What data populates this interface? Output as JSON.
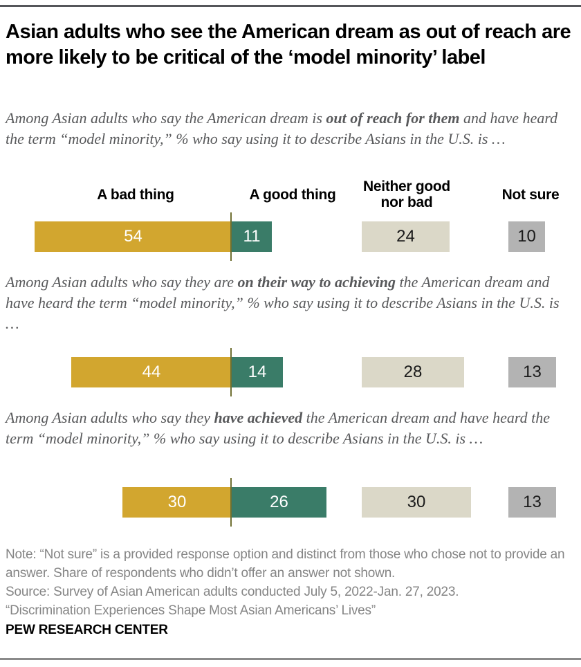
{
  "header": {
    "title": "Asian adults who see the American dream as out of reach are more likely to be critical of the ‘model minority’ label"
  },
  "columns": [
    {
      "id": "bad",
      "label": "A bad thing"
    },
    {
      "id": "good",
      "label": "A good thing"
    },
    {
      "id": "neither",
      "label": "Neither good nor bad"
    },
    {
      "id": "not_sure",
      "label": "Not sure"
    }
  ],
  "sections": [
    {
      "intro": {
        "pre": "Among Asian adults who say the American dream is ",
        "bold": "out of reach for them",
        "post": " and have heard the term “model minority,” % who say using it to describe Asians in the U.S. is …"
      }
    },
    {
      "intro": {
        "pre": "Among Asian adults who say they are ",
        "bold": "on their way to achieving",
        "post": " the American dream and have heard the term “model minority,” % who say using it to describe Asians in the U.S. is …"
      }
    },
    {
      "intro": {
        "pre": "Among Asian adults who say they ",
        "bold": "have achieved",
        "post": " the American dream and have heard the term “model minority,” % who say using it to describe Asians in the U.S. is …"
      }
    }
  ],
  "chart_data": {
    "type": "bar",
    "title": "Asian adults who see the American dream as out of reach are more likely to be critical of the ‘model minority’ label",
    "unit": "%",
    "categories": [
      "A bad thing",
      "A good thing",
      "Neither good nor bad",
      "Not sure"
    ],
    "series": [
      {
        "name": "American dream is out of reach for them",
        "values": [
          54,
          11,
          24,
          10
        ]
      },
      {
        "name": "On their way to achieving the American dream",
        "values": [
          44,
          14,
          28,
          13
        ]
      },
      {
        "name": "Have achieved the American dream",
        "values": [
          30,
          26,
          30,
          13
        ]
      }
    ],
    "legend_position": "column-headers",
    "grid": false,
    "colors": {
      "bad_bar": "#d2a62f",
      "good_bar": "#3a7c68",
      "neither_bar": "#dbd8c8",
      "not_sure_bar": "#b3b3b3",
      "axis_divider": "#6f7032"
    }
  },
  "notes": {
    "note": "Note: “Not sure” is a provided response option and distinct from those who chose not to provide an answer. Share of respondents who didn’t offer an answer not shown.",
    "source": "Source: Survey of Asian American adults conducted July 5, 2022-Jan. 27, 2023.",
    "report": "“Discrimination Experiences Shape Most Asian Americans’ Lives”"
  },
  "brand": "PEW RESEARCH CENTER"
}
